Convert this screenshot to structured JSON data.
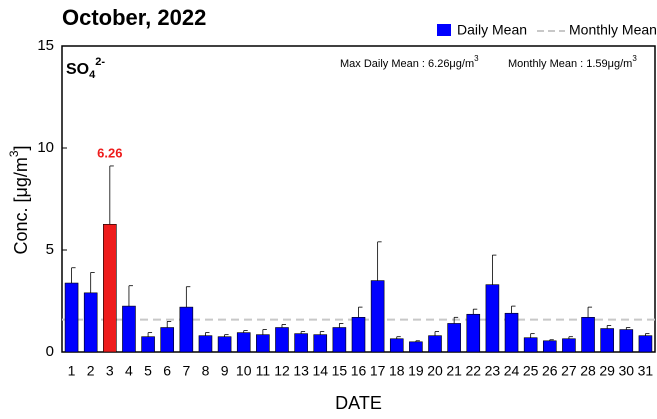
{
  "chart_data": {
    "type": "bar",
    "title": "October, 2022",
    "species": {
      "text": "SO",
      "sub": "4",
      "sup": "2-"
    },
    "xlabel": "DATE",
    "ylabel": {
      "text": "Conc. [μg/m",
      "sup": "3",
      "end": "]"
    },
    "annotations": [
      {
        "text": "Max Daily Mean : 6.26μg/m",
        "sup": "3"
      },
      {
        "text": "Monthly Mean : 1.59μg/m",
        "sup": "3"
      }
    ],
    "categories": [
      "1",
      "2",
      "3",
      "4",
      "5",
      "6",
      "7",
      "8",
      "9",
      "10",
      "11",
      "12",
      "13",
      "14",
      "15",
      "16",
      "17",
      "18",
      "19",
      "20",
      "21",
      "22",
      "23",
      "24",
      "25",
      "26",
      "27",
      "28",
      "29",
      "30",
      "31"
    ],
    "series": [
      {
        "name": "Daily Mean",
        "color": "#0000ff",
        "values": [
          3.38,
          2.9,
          6.26,
          2.25,
          0.75,
          1.2,
          2.2,
          0.8,
          0.75,
          0.95,
          0.85,
          1.2,
          0.9,
          0.85,
          1.2,
          1.7,
          3.5,
          0.65,
          0.5,
          0.8,
          1.4,
          1.85,
          3.3,
          1.9,
          0.7,
          0.55,
          0.65,
          1.7,
          1.15,
          1.1,
          0.8
        ],
        "errors": [
          0.75,
          1.0,
          2.86,
          1.0,
          0.2,
          0.3,
          1.0,
          0.15,
          0.1,
          0.1,
          0.25,
          0.15,
          0.1,
          0.15,
          0.2,
          0.5,
          1.9,
          0.1,
          0.05,
          0.2,
          0.3,
          0.25,
          1.45,
          0.35,
          0.2,
          0.05,
          0.1,
          0.5,
          0.15,
          0.1,
          0.1
        ]
      }
    ],
    "highlight_index": 2,
    "highlight_color": "#ee1c1c",
    "reference": {
      "name": "Monthly Mean",
      "value": 1.59,
      "color": "#c8c8c8"
    },
    "ylim": [
      0,
      15
    ],
    "yticks": [
      0,
      5,
      10,
      15
    ]
  }
}
